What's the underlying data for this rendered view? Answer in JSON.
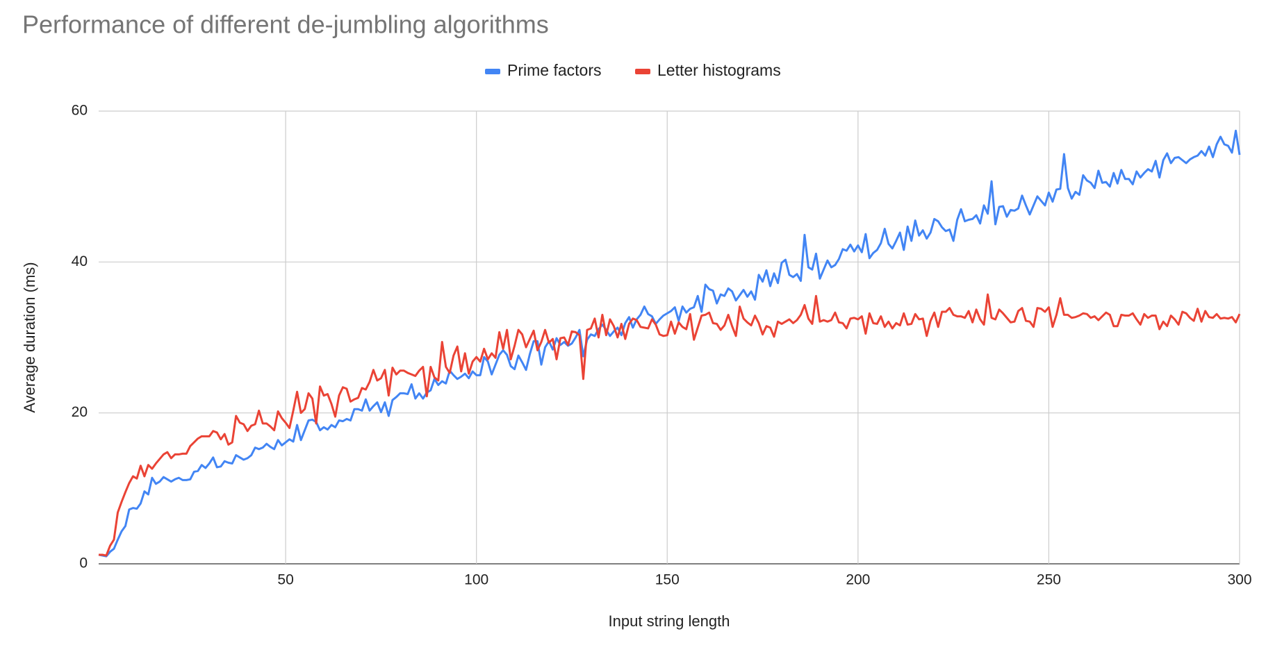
{
  "chart_data": {
    "type": "line",
    "title": "Performance of different de-jumbling algorithms",
    "x_label": "Input string length",
    "y_label": "Average duration (ms)",
    "legend": "top",
    "grid": true,
    "xlim": [
      1,
      300
    ],
    "xticks": [
      50,
      100,
      150,
      200,
      250,
      300
    ],
    "ylim": [
      0,
      60
    ],
    "yticks": [
      0,
      20,
      40,
      60
    ],
    "x": [
      1,
      2,
      3,
      4,
      5,
      6,
      7,
      8,
      9,
      10,
      11,
      12,
      13,
      14,
      15,
      16,
      17,
      18,
      19,
      20,
      21,
      22,
      23,
      24,
      25,
      26,
      27,
      28,
      29,
      30,
      31,
      32,
      33,
      34,
      35,
      36,
      37,
      38,
      39,
      40,
      41,
      42,
      43,
      44,
      45,
      46,
      47,
      48,
      49,
      50,
      51,
      52,
      53,
      54,
      55,
      56,
      57,
      58,
      59,
      60,
      61,
      62,
      63,
      64,
      65,
      66,
      67,
      68,
      69,
      70,
      71,
      72,
      73,
      74,
      75,
      76,
      77,
      78,
      79,
      80,
      81,
      82,
      83,
      84,
      85,
      86,
      87,
      88,
      89,
      90,
      91,
      92,
      93,
      94,
      95,
      96,
      97,
      98,
      99,
      100,
      101,
      102,
      103,
      104,
      105,
      106,
      107,
      108,
      109,
      110,
      111,
      112,
      113,
      114,
      115,
      116,
      117,
      118,
      119,
      120,
      121,
      122,
      123,
      124,
      125,
      126,
      127,
      128,
      129,
      130,
      131,
      132,
      133,
      134,
      135,
      136,
      137,
      138,
      139,
      140,
      141,
      142,
      143,
      144,
      145,
      146,
      147,
      148,
      149,
      150,
      151,
      152,
      153,
      154,
      155,
      156,
      157,
      158,
      159,
      160,
      161,
      162,
      163,
      164,
      165,
      166,
      167,
      168,
      169,
      170,
      171,
      172,
      173,
      174,
      175,
      176,
      177,
      178,
      179,
      180,
      181,
      182,
      183,
      184,
      185,
      186,
      187,
      188,
      189,
      190,
      191,
      192,
      193,
      194,
      195,
      196,
      197,
      198,
      199,
      200,
      201,
      202,
      203,
      204,
      205,
      206,
      207,
      208,
      209,
      210,
      211,
      212,
      213,
      214,
      215,
      216,
      217,
      218,
      219,
      220,
      221,
      222,
      223,
      224,
      225,
      226,
      227,
      228,
      229,
      230,
      231,
      232,
      233,
      234,
      235,
      236,
      237,
      238,
      239,
      240,
      241,
      242,
      243,
      244,
      245,
      246,
      247,
      248,
      249,
      250,
      251,
      252,
      253,
      254,
      255,
      256,
      257,
      258,
      259,
      260,
      261,
      262,
      263,
      264,
      265,
      266,
      267,
      268,
      269,
      270,
      271,
      272,
      273,
      274,
      275,
      276,
      277,
      278,
      279,
      280,
      281,
      282,
      283,
      284,
      285,
      286,
      287,
      288,
      289,
      290,
      291,
      292,
      293,
      294,
      295,
      296,
      297,
      298,
      299,
      300
    ],
    "series": [
      {
        "name": "Prime factors",
        "color": "#4285f4",
        "values": [
          1.2,
          1.1,
          1.0,
          1.6,
          2.0,
          3.2,
          4.3,
          5.0,
          7.2,
          7.4,
          7.3,
          8.0,
          9.6,
          9.2,
          11.4,
          10.6,
          10.9,
          11.5,
          11.2,
          10.9,
          11.2,
          11.4,
          11.1,
          11.1,
          11.2,
          12.2,
          12.3,
          13.1,
          12.7,
          13.3,
          14.1,
          12.8,
          12.9,
          13.6,
          13.4,
          13.3,
          14.4,
          14.1,
          13.8,
          14.0,
          14.4,
          15.4,
          15.2,
          15.4,
          15.9,
          15.5,
          15.2,
          16.4,
          15.7,
          16.1,
          16.5,
          16.2,
          18.4,
          16.4,
          17.7,
          19.0,
          19.1,
          18.8,
          17.7,
          18.1,
          17.8,
          18.4,
          18.1,
          19.0,
          18.9,
          19.2,
          19.0,
          20.5,
          20.5,
          20.3,
          21.8,
          20.3,
          20.9,
          21.4,
          20.1,
          21.4,
          19.6,
          21.7,
          22.1,
          22.6,
          22.6,
          22.5,
          23.8,
          21.9,
          22.6,
          21.9,
          22.7,
          23.0,
          24.5,
          23.7,
          24.2,
          23.9,
          25.6,
          25.0,
          24.5,
          24.8,
          25.2,
          24.6,
          25.5,
          25.0,
          25.0,
          27.4,
          26.8,
          25.1,
          26.4,
          27.7,
          28.3,
          27.7,
          26.2,
          25.8,
          27.6,
          26.7,
          25.7,
          27.8,
          29.5,
          29.5,
          26.4,
          28.7,
          29.5,
          28.4,
          29.9,
          29.0,
          29.4,
          28.9,
          29.2,
          30.0,
          31.0,
          27.5,
          29.7,
          30.4,
          30.2,
          31.1,
          31.7,
          31.0,
          30.2,
          30.8,
          31.3,
          30.3,
          31.9,
          32.7,
          31.3,
          32.4,
          33.0,
          34.1,
          33.1,
          32.8,
          31.8,
          32.4,
          32.9,
          33.2,
          33.5,
          34.0,
          32.2,
          34.1,
          33.3,
          33.8,
          34.0,
          35.5,
          33.4,
          37.0,
          36.4,
          36.2,
          34.5,
          35.7,
          35.5,
          36.5,
          36.1,
          34.9,
          35.6,
          36.3,
          35.4,
          36.1,
          35.0,
          38.3,
          37.4,
          38.9,
          36.8,
          38.5,
          37.2,
          39.9,
          40.3,
          38.3,
          38.0,
          38.4,
          37.5,
          43.6,
          39.3,
          39.0,
          41.1,
          37.8,
          39.0,
          40.2,
          39.3,
          39.6,
          40.4,
          41.7,
          41.5,
          42.3,
          41.4,
          42.2,
          41.3,
          43.7,
          40.5,
          41.2,
          41.6,
          42.5,
          44.4,
          42.4,
          41.8,
          42.8,
          43.9,
          41.6,
          44.7,
          42.8,
          45.5,
          43.5,
          44.2,
          43.1,
          43.9,
          45.7,
          45.4,
          44.6,
          44.1,
          44.3,
          42.8,
          45.6,
          47.0,
          45.4,
          45.6,
          45.7,
          46.2,
          45.1,
          47.5,
          46.4,
          50.7,
          45.0,
          47.3,
          47.4,
          46.0,
          46.9,
          46.8,
          47.1,
          48.8,
          47.5,
          46.3,
          47.5,
          48.7,
          48.1,
          47.5,
          49.2,
          48.0,
          49.6,
          49.7,
          54.3,
          49.8,
          48.4,
          49.3,
          48.9,
          51.5,
          50.8,
          50.5,
          49.8,
          52.1,
          50.5,
          50.6,
          50.0,
          51.8,
          50.4,
          52.2,
          51.0,
          51.0,
          50.3,
          52.0,
          51.2,
          51.8,
          52.3,
          52.0,
          53.4,
          51.2,
          53.5,
          54.4,
          53.1,
          53.8,
          53.9,
          53.5,
          53.1,
          53.6,
          53.9,
          54.1,
          54.7,
          54.1,
          55.3,
          53.9,
          55.6,
          56.6,
          55.6,
          55.4,
          54.5,
          57.4,
          54.2
        ]
      },
      {
        "name": "Letter histograms",
        "color": "#ea4335",
        "values": [
          1.2,
          1.2,
          1.1,
          2.4,
          3.2,
          6.8,
          8.2,
          9.5,
          10.7,
          11.6,
          11.3,
          13.0,
          11.6,
          13.1,
          12.6,
          13.3,
          13.9,
          14.5,
          14.8,
          14.0,
          14.5,
          14.5,
          14.6,
          14.6,
          15.6,
          16.1,
          16.6,
          16.9,
          16.9,
          16.9,
          17.6,
          17.4,
          16.5,
          17.2,
          15.8,
          16.1,
          19.6,
          18.7,
          18.5,
          17.6,
          18.3,
          18.5,
          20.3,
          18.6,
          18.6,
          18.2,
          17.7,
          20.2,
          19.3,
          18.7,
          18.0,
          20.3,
          22.8,
          20.0,
          20.5,
          22.6,
          21.9,
          18.6,
          23.5,
          22.3,
          22.5,
          21.2,
          19.5,
          22.3,
          23.4,
          23.2,
          21.5,
          21.8,
          22.0,
          23.3,
          23.1,
          24.1,
          25.7,
          24.3,
          24.6,
          25.7,
          22.3,
          26.0,
          25.1,
          25.6,
          25.6,
          25.3,
          25.1,
          24.9,
          25.6,
          26.1,
          22.2,
          26.1,
          24.7,
          24.3,
          29.4,
          26.1,
          25.3,
          27.6,
          28.8,
          25.5,
          27.9,
          25.2,
          26.8,
          27.4,
          26.8,
          28.5,
          27.1,
          27.9,
          27.3,
          30.7,
          28.5,
          31.0,
          27.1,
          28.9,
          31.0,
          30.4,
          28.7,
          29.8,
          30.9,
          28.3,
          29.4,
          31.0,
          29.3,
          29.8,
          27.1,
          29.9,
          30.0,
          29.0,
          30.8,
          30.7,
          30.3,
          24.5,
          31.0,
          31.2,
          32.5,
          30.0,
          33.0,
          30.3,
          32.4,
          31.5,
          30.0,
          31.8,
          29.8,
          31.8,
          32.5,
          32.3,
          31.4,
          31.3,
          31.2,
          32.4,
          31.7,
          30.4,
          30.2,
          30.3,
          32.1,
          30.5,
          32.0,
          31.4,
          31.1,
          33.1,
          29.7,
          31.3,
          32.9,
          33.0,
          33.3,
          31.9,
          31.8,
          31.0,
          31.6,
          33.0,
          31.5,
          30.2,
          34.1,
          32.5,
          32.0,
          31.6,
          32.9,
          31.9,
          30.4,
          31.5,
          31.3,
          30.1,
          32.1,
          31.8,
          32.1,
          32.4,
          31.9,
          32.3,
          33.0,
          34.3,
          32.5,
          31.8,
          35.5,
          32.1,
          32.3,
          32.1,
          32.3,
          33.3,
          32.0,
          31.9,
          31.2,
          32.5,
          32.6,
          32.4,
          32.8,
          30.5,
          33.2,
          31.9,
          31.8,
          32.8,
          31.4,
          32.1,
          31.2,
          31.9,
          31.6,
          33.2,
          31.7,
          31.8,
          33.1,
          32.4,
          32.5,
          30.2,
          32.2,
          33.3,
          31.4,
          33.4,
          33.4,
          33.9,
          33.0,
          32.8,
          32.8,
          32.6,
          33.5,
          32.0,
          33.7,
          32.4,
          31.7,
          35.7,
          32.6,
          32.4,
          33.7,
          33.2,
          32.6,
          32.0,
          32.1,
          33.5,
          33.9,
          32.2,
          32.1,
          31.4,
          33.9,
          33.8,
          33.4,
          34.0,
          31.4,
          33.0,
          35.2,
          33.0,
          33.0,
          32.6,
          32.7,
          32.9,
          33.2,
          33.1,
          32.6,
          32.8,
          32.3,
          32.8,
          33.3,
          33.0,
          31.5,
          31.5,
          33.0,
          32.9,
          32.9,
          33.2,
          32.4,
          31.7,
          33.1,
          32.6,
          32.9,
          32.9,
          31.1,
          32.1,
          31.5,
          32.9,
          32.4,
          31.7,
          33.4,
          33.2,
          32.6,
          32.2,
          33.8,
          32.1,
          33.5,
          32.7,
          32.6,
          33.1,
          32.5,
          32.6,
          32.5,
          32.7,
          32.0,
          33.1
        ]
      }
    ]
  }
}
